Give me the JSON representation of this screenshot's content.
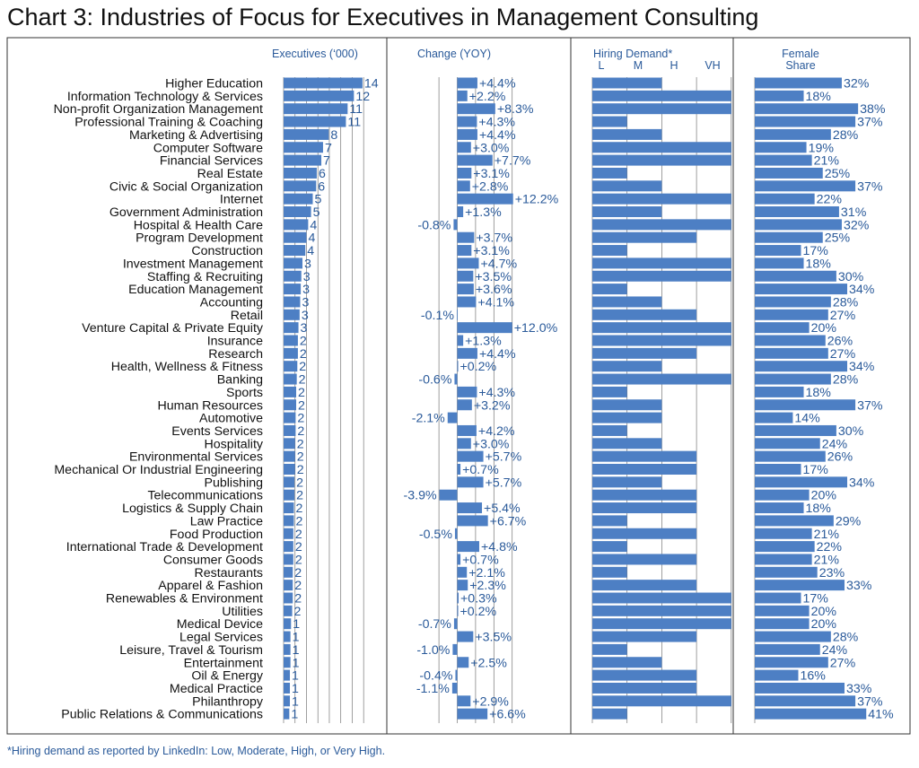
{
  "title": "Chart 3: Industries of Focus for Executives in Management Consulting",
  "footnote": "*Hiring demand as reported by LinkedIn: Low, Moderate, High, or Very High.",
  "colors": {
    "bar": "#4d7fc4",
    "text": "#2a5a9a",
    "grid": "#777777"
  },
  "chart_data": {
    "type": "bar",
    "panels": [
      {
        "key": "executives",
        "header": [
          "Executives (‘000)"
        ],
        "xlim": [
          0,
          14
        ]
      },
      {
        "key": "change",
        "header": [
          "Change (YOY)"
        ],
        "xlim": [
          -4,
          13
        ],
        "unit": "%"
      },
      {
        "key": "hiring",
        "header": [
          "Hiring  Demand*"
        ],
        "ticks": [
          "L",
          "M",
          "H",
          "VH"
        ],
        "scale": [
          1,
          4
        ]
      },
      {
        "key": "female",
        "header": [
          "Female",
          "Share"
        ],
        "xlim": [
          0,
          41
        ],
        "unit": "%"
      }
    ],
    "categories": [
      "Higher Education",
      "Information Technology & Services",
      "Non-profit Organization Management",
      "Professional Training & Coaching",
      "Marketing & Advertising",
      "Computer Software",
      "Financial Services",
      "Real Estate",
      "Civic & Social Organization",
      "Internet",
      "Government Administration",
      "Hospital & Health Care",
      "Program Development",
      "Construction",
      "Investment Management",
      "Staffing & Recruiting",
      "Education Management",
      "Accounting",
      "Retail",
      "Venture Capital & Private Equity",
      "Insurance",
      "Research",
      "Health, Wellness & Fitness",
      "Banking",
      "Sports",
      "Human Resources",
      "Automotive",
      "Events Services",
      "Hospitality",
      "Environmental Services",
      "Mechanical Or Industrial Engineering",
      "Publishing",
      "Telecommunications",
      "Logistics & Supply Chain",
      "Law Practice",
      "Food Production",
      "International Trade & Development",
      "Consumer Goods",
      "Restaurants",
      "Apparel & Fashion",
      "Renewables & Environment",
      "Utilities",
      "Medical Device",
      "Legal Services",
      "Leisure, Travel & Tourism",
      "Entertainment",
      "Oil & Energy",
      "Medical Practice",
      "Philanthropy",
      "Public Relations & Communications"
    ],
    "executives": [
      14,
      12,
      11,
      11,
      8,
      7,
      7,
      6,
      6,
      5,
      5,
      4,
      4,
      4,
      3,
      3,
      3,
      3,
      3,
      3,
      2,
      2,
      2,
      2,
      2,
      2,
      2,
      2,
      2,
      2,
      2,
      2,
      2,
      2,
      2,
      2,
      2,
      2,
      2,
      2,
      2,
      2,
      1,
      1,
      1,
      1,
      1,
      1,
      1,
      1
    ],
    "executives_bar": [
      13.8,
      12.3,
      11.2,
      10.9,
      7.9,
      6.9,
      6.6,
      5.8,
      5.7,
      5.1,
      4.8,
      4.3,
      4.0,
      3.8,
      3.3,
      3.1,
      3.0,
      2.9,
      2.8,
      2.6,
      2.5,
      2.5,
      2.4,
      2.3,
      2.2,
      2.2,
      2.1,
      2.1,
      2.0,
      2.0,
      2.0,
      1.9,
      1.9,
      1.8,
      1.8,
      1.7,
      1.7,
      1.7,
      1.6,
      1.6,
      1.6,
      1.5,
      1.3,
      1.2,
      1.2,
      1.2,
      1.1,
      1.1,
      1.1,
      1.0
    ],
    "change": [
      4.4,
      2.2,
      8.3,
      4.3,
      4.4,
      3.0,
      7.7,
      3.1,
      2.8,
      12.2,
      1.3,
      -0.8,
      3.7,
      3.1,
      4.7,
      3.5,
      3.6,
      4.1,
      -0.1,
      12.0,
      1.3,
      4.4,
      0.2,
      -0.6,
      4.3,
      3.2,
      -2.1,
      4.2,
      3.0,
      5.7,
      0.7,
      5.7,
      -3.9,
      5.4,
      6.7,
      -0.5,
      4.8,
      0.7,
      2.1,
      2.3,
      0.3,
      0.2,
      -0.7,
      3.5,
      -1.0,
      2.5,
      -0.4,
      -1.1,
      2.9,
      6.6
    ],
    "change_labels": [
      "+4.4%",
      "+2.2%",
      "+8.3%",
      "+4.3%",
      "+4.4%",
      "+3.0%",
      "+7.7%",
      "+3.1%",
      "+2.8%",
      "+12.2%",
      "+1.3%",
      "-0.8%",
      "+3.7%",
      "+3.1%",
      "+4.7%",
      "+3.5%",
      "+3.6%",
      "+4.1%",
      "-0.1%",
      "+12.0%",
      "+1.3%",
      "+4.4%",
      "+0.2%",
      "-0.6%",
      "+4.3%",
      "+3.2%",
      "-2.1%",
      "+4.2%",
      "+3.0%",
      "+5.7%",
      "+0.7%",
      "+5.7%",
      "-3.9%",
      "+5.4%",
      "+6.7%",
      "-0.5%",
      "+4.8%",
      "+0.7%",
      "+2.1%",
      "+2.3%",
      "+0.3%",
      "+0.2%",
      "-0.7%",
      "+3.5%",
      "-1.0%",
      "+2.5%",
      "-0.4%",
      "-1.1%",
      "+2.9%",
      "+6.6%"
    ],
    "hiring": [
      "M",
      "VH",
      "VH",
      "L",
      "M",
      "VH",
      "VH",
      "L",
      "M",
      "VH",
      "M",
      "VH",
      "H",
      "L",
      "VH",
      "VH",
      "L",
      "M",
      "H",
      "VH",
      "VH",
      "H",
      "M",
      "VH",
      "L",
      "M",
      "M",
      "L",
      "M",
      "H",
      "H",
      "M",
      "H",
      "H",
      "L",
      "H",
      "L",
      "H",
      "L",
      "H",
      "VH",
      "VH",
      "VH",
      "H",
      "L",
      "M",
      "H",
      "H",
      "VH",
      "L"
    ],
    "female": [
      32,
      18,
      38,
      37,
      28,
      19,
      21,
      25,
      37,
      22,
      31,
      32,
      25,
      17,
      18,
      30,
      34,
      28,
      27,
      20,
      26,
      27,
      34,
      28,
      18,
      37,
      14,
      30,
      24,
      26,
      17,
      34,
      20,
      18,
      29,
      21,
      22,
      21,
      23,
      33,
      17,
      20,
      20,
      28,
      24,
      27,
      16,
      33,
      37,
      41
    ],
    "female_labels": [
      "32%",
      "18%",
      "38%",
      "37%",
      "28%",
      "19%",
      "21%",
      "25%",
      "37%",
      "22%",
      "31%",
      "32%",
      "25%",
      "17%",
      "18%",
      "30%",
      "34%",
      "28%",
      "27%",
      "20%",
      "26%",
      "27%",
      "34%",
      "28%",
      "18%",
      "37%",
      "14%",
      "30%",
      "24%",
      "26%",
      "17%",
      "34%",
      "20%",
      "18%",
      "29%",
      "21%",
      "22%",
      "21%",
      "23%",
      "33%",
      "17%",
      "20%",
      "20%",
      "28%",
      "24%",
      "27%",
      "16%",
      "33%",
      "37%",
      "41%"
    ]
  }
}
